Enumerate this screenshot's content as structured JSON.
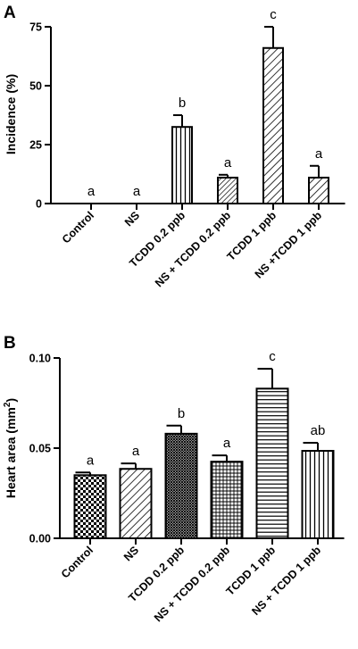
{
  "chart_data": [
    {
      "type": "bar",
      "panel": "A",
      "title": "",
      "xlabel": "",
      "ylabel": "Incidence (%)",
      "ylim": [
        0,
        75
      ],
      "yticks": [
        "0",
        "25",
        "50",
        "75"
      ],
      "categories": [
        "Control",
        "NS",
        "TCDD 0.2 ppb",
        "NS + TCDD 0.2 ppb",
        "TCDD 1 ppb",
        "NS +TCDD 1 ppb"
      ],
      "values": [
        0,
        0,
        32.5,
        11,
        66,
        11
      ],
      "errors": [
        0,
        0,
        5,
        1.2,
        9,
        5
      ],
      "significance": [
        "a",
        "a",
        "b",
        "a",
        "c",
        "a"
      ],
      "patterns": [
        "none",
        "none",
        "vertical",
        "diagonal-dense",
        "diagonal",
        "diagonal"
      ]
    },
    {
      "type": "bar",
      "panel": "B",
      "title": "",
      "xlabel": "",
      "ylabel": "Heart area (mm²)",
      "ylim": [
        0,
        0.1
      ],
      "yticks": [
        "0.00",
        "0.05",
        "0.10"
      ],
      "categories": [
        "Control",
        "NS",
        "TCDD 0.2 ppb",
        "NS + TCDD 0.2 ppb",
        "TCDD 1 ppb",
        "NS + TCDD 1 ppb"
      ],
      "values": [
        0.035,
        0.0385,
        0.058,
        0.0425,
        0.083,
        0.0485
      ],
      "errors": [
        0.0015,
        0.003,
        0.0045,
        0.0035,
        0.011,
        0.0045
      ],
      "significance": [
        "a",
        "a",
        "b",
        "a",
        "c",
        "ab"
      ],
      "patterns": [
        "checker",
        "diagonal",
        "crosshatch-dense",
        "grid",
        "horizontal",
        "vertical"
      ]
    }
  ]
}
